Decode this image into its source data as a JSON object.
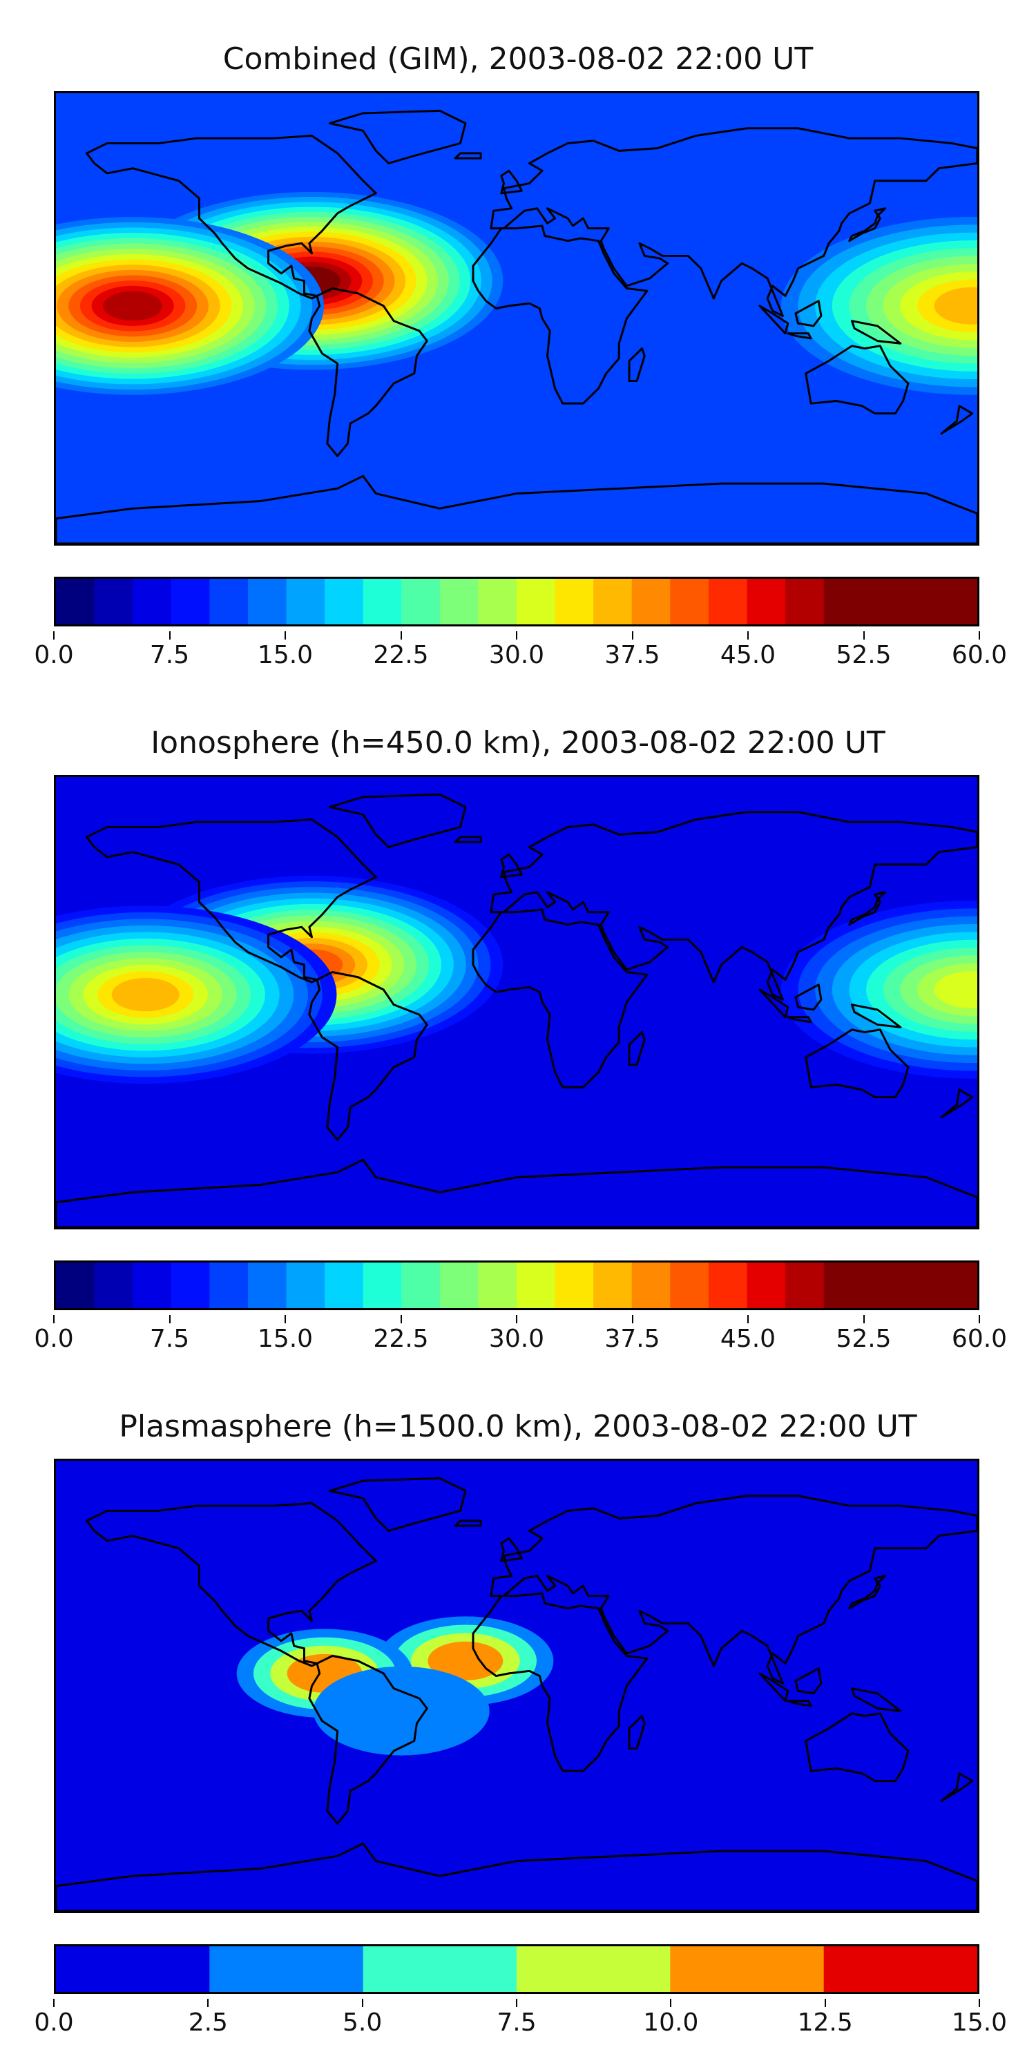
{
  "panels": [
    {
      "title": "Combined (GIM), 2003-08-02 22:00 UT",
      "colorbar": {
        "min": 0,
        "max": 60,
        "levels": 24,
        "ticks": [
          "0.0",
          "7.5",
          "15.0",
          "22.5",
          "30.0",
          "37.5",
          "45.0",
          "52.5",
          "60.0"
        ],
        "colors": [
          "#00007f",
          "#0000b2",
          "#0000e5",
          "#0010ff",
          "#0040ff",
          "#0070ff",
          "#00a4ff",
          "#00d4ff",
          "#1effd8",
          "#4effa8",
          "#7eff79",
          "#a8ff4e",
          "#d8ff1e",
          "#ffe600",
          "#ffb900",
          "#ff8900",
          "#ff5900",
          "#ff2a00",
          "#e50000",
          "#b20000",
          "#7f0000",
          "#7f0000",
          "#7f0000",
          "#7f0000"
        ]
      },
      "map_data": {
        "background_level": 4,
        "anomalies": [
          {
            "name": "equatorial-anomaly-americas",
            "level": 20,
            "lon": -80,
            "lat": 15
          },
          {
            "name": "equatorial-anomaly-pacific",
            "level": 19,
            "lon": -150,
            "lat": 5
          },
          {
            "name": "equatorial-anomaly-asia",
            "level": 14,
            "lon": 178,
            "lat": 5
          }
        ]
      }
    },
    {
      "title": "Ionosphere  (h=450.0 km), 2003-08-02 22:00 UT",
      "colorbar": {
        "min": 0,
        "max": 60,
        "levels": 24,
        "ticks": [
          "0.0",
          "7.5",
          "15.0",
          "22.5",
          "30.0",
          "37.5",
          "45.0",
          "52.5",
          "60.0"
        ],
        "colors": [
          "#00007f",
          "#0000b2",
          "#0000e5",
          "#0010ff",
          "#0040ff",
          "#0070ff",
          "#00a4ff",
          "#00d4ff",
          "#1effd8",
          "#4effa8",
          "#7eff79",
          "#a8ff4e",
          "#d8ff1e",
          "#ffe600",
          "#ffb900",
          "#ff8900",
          "#ff5900",
          "#ff2a00",
          "#e50000",
          "#b20000",
          "#7f0000",
          "#7f0000",
          "#7f0000",
          "#7f0000"
        ]
      },
      "map_data": {
        "background_level": 2,
        "anomalies": [
          {
            "name": "equatorial-anomaly-americas",
            "level": 16,
            "lon": -80,
            "lat": 15
          },
          {
            "name": "equatorial-anomaly-pacific",
            "level": 14,
            "lon": -145,
            "lat": 3
          },
          {
            "name": "equatorial-anomaly-asia",
            "level": 12,
            "lon": 178,
            "lat": 5
          }
        ]
      }
    },
    {
      "title": "Plasmasphere (h=1500.0 km), 2003-08-02 22:00 UT",
      "colorbar": {
        "min": 0,
        "max": 15,
        "levels": 6,
        "ticks": [
          "0.0",
          "2.5",
          "5.0",
          "7.5",
          "10.0",
          "12.5",
          "15.0"
        ],
        "colors": [
          "#0000e5",
          "#0080ff",
          "#3affc8",
          "#c6ff39",
          "#ff9000",
          "#e50000"
        ]
      },
      "map_data": {
        "background_level": 0,
        "anomalies": [
          {
            "name": "plasmasphere-max-atlantic",
            "level": 4,
            "lon": -20,
            "lat": 10
          },
          {
            "name": "plasmasphere-max-america",
            "level": 4,
            "lon": -75,
            "lat": 5
          },
          {
            "name": "plasmasphere-min-brazil",
            "level": 1,
            "lon": -45,
            "lat": -10
          }
        ]
      }
    }
  ]
}
